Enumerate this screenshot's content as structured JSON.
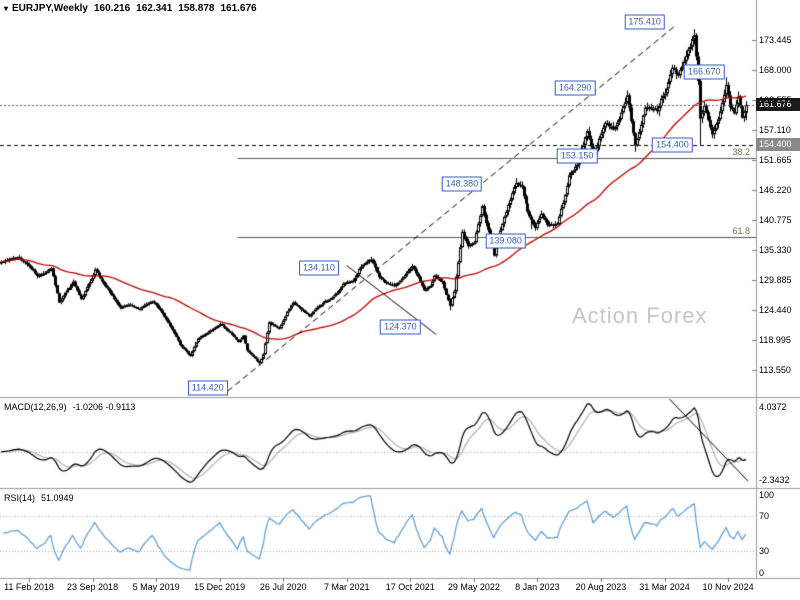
{
  "header": {
    "symbol": "EURJPY,Weekly",
    "open": "160.216",
    "high": "162.341",
    "low": "158.878",
    "close": "161.676"
  },
  "watermark": "Action Forex",
  "colors": {
    "candle_border": "#000000",
    "up_fill": "#ffffff",
    "down_fill": "#000000",
    "ma": "#c00000",
    "annotation": "#3a5bbf",
    "trend": "#000000",
    "current_chip_bg": "#1a1a1a",
    "level_chip_bg": "#8a8a8a",
    "macd_line": "#000000",
    "macd_signal": "#b0b0b0",
    "rsi_line": "#5b9bd5",
    "separator": "#9c9c9c",
    "grid_dotted": "#a8a8a8",
    "axis_text": "#000000",
    "fib_line": "#555555",
    "watermark": "#c6c6c6",
    "current_line": "#666666"
  },
  "chart_data": [
    {
      "type": "candlestick",
      "title": "EURJPY Weekly",
      "x_ticks": {
        "labels": [
          "11 Feb 2018",
          "23 Sep 2018",
          "5 May 2019",
          "15 Dec 2019",
          "26 Jul 2020",
          "7 Mar 2021",
          "17 Oct 2021",
          "29 May 2022",
          "8 Jan 2023",
          "20 Aug 2023",
          "31 Mar 2024",
          "10 Nov 2024"
        ],
        "weeks_per_tick": 32
      },
      "y_ticks": [
        "173.445",
        "168.000",
        "162.555",
        "157.110",
        "151.665",
        "146.220",
        "140.775",
        "135.330",
        "129.885",
        "124.440",
        "118.995",
        "113.550"
      ],
      "visible_price_range": [
        108.8,
        180.7
      ],
      "current": {
        "open": 160.216,
        "high": 162.341,
        "low": 158.878,
        "close": 161.676
      },
      "current_price_label": "161.676",
      "level_line": {
        "price": 154.4,
        "label": "154.400"
      },
      "weeks_start": -14,
      "weeks_end": 361,
      "close_anchors": [
        [
          -14,
          133.2
        ],
        [
          -6,
          134.0
        ],
        [
          0,
          132.4
        ],
        [
          4,
          130.6
        ],
        [
          8,
          131.2
        ],
        [
          11,
          132.0
        ],
        [
          15,
          125.8
        ],
        [
          18,
          127.6
        ],
        [
          22,
          129.6
        ],
        [
          26,
          126.4
        ],
        [
          30,
          129.3
        ],
        [
          33,
          131.8
        ],
        [
          37,
          129.6
        ],
        [
          41,
          127.5
        ],
        [
          46,
          124.9
        ],
        [
          50,
          125.4
        ],
        [
          55,
          124.6
        ],
        [
          62,
          126.0
        ],
        [
          66,
          124.4
        ],
        [
          70,
          122.1
        ],
        [
          76,
          118.1
        ],
        [
          81,
          116.1
        ],
        [
          85,
          119.3
        ],
        [
          90,
          120.4
        ],
        [
          96,
          121.9
        ],
        [
          101,
          120.3
        ],
        [
          105,
          118.6
        ],
        [
          108,
          119.8
        ],
        [
          110,
          117.1
        ],
        [
          113,
          116.0
        ],
        [
          116,
          114.8
        ],
        [
          118,
          116.4
        ],
        [
          121,
          122.2
        ],
        [
          126,
          121.1
        ],
        [
          130,
          124.2
        ],
        [
          133,
          125.8
        ],
        [
          137,
          124.5
        ],
        [
          141,
          123.3
        ],
        [
          146,
          125.2
        ],
        [
          150,
          126.2
        ],
        [
          155,
          127.5
        ],
        [
          158,
          129.2
        ],
        [
          163,
          129.7
        ],
        [
          166,
          131.9
        ],
        [
          172,
          133.6
        ],
        [
          176,
          130.4
        ],
        [
          180,
          129.3
        ],
        [
          184,
          128.8
        ],
        [
          188,
          130.2
        ],
        [
          193,
          132.4
        ],
        [
          196,
          130.5
        ],
        [
          199,
          128.0
        ],
        [
          202,
          128.8
        ],
        [
          204,
          130.7
        ],
        [
          208,
          129.5
        ],
        [
          212,
          125.2
        ],
        [
          214,
          127.8
        ],
        [
          218,
          138.6
        ],
        [
          221,
          136.0
        ],
        [
          224,
          136.7
        ],
        [
          228,
          143.3
        ],
        [
          231,
          139.0
        ],
        [
          234,
          134.3
        ],
        [
          237,
          138.9
        ],
        [
          241,
          143.5
        ],
        [
          245,
          147.5
        ],
        [
          248,
          146.8
        ],
        [
          251,
          142.3
        ],
        [
          255,
          139.3
        ],
        [
          258,
          141.9
        ],
        [
          261,
          139.9
        ],
        [
          266,
          140.0
        ],
        [
          269,
          143.9
        ],
        [
          272,
          148.9
        ],
        [
          276,
          150.8
        ],
        [
          281,
          156.9
        ],
        [
          284,
          152.3
        ],
        [
          287,
          155.6
        ],
        [
          290,
          158.4
        ],
        [
          294,
          157.2
        ],
        [
          297,
          159.1
        ],
        [
          301,
          163.4
        ],
        [
          303,
          158.7
        ],
        [
          305,
          154.3
        ],
        [
          308,
          158.1
        ],
        [
          310,
          161.2
        ],
        [
          313,
          160.9
        ],
        [
          316,
          160.5
        ],
        [
          318,
          162.8
        ],
        [
          321,
          164.7
        ],
        [
          324,
          168.4
        ],
        [
          327,
          167.0
        ],
        [
          330,
          169.6
        ],
        [
          333,
          172.2
        ],
        [
          335,
          174.3
        ],
        [
          337,
          166.0
        ],
        [
          338,
          159.2
        ],
        [
          340,
          161.5
        ],
        [
          342,
          158.9
        ],
        [
          344,
          156.3
        ],
        [
          346,
          158.2
        ],
        [
          348,
          160.5
        ],
        [
          351,
          165.3
        ],
        [
          353,
          161.2
        ],
        [
          355,
          160.1
        ],
        [
          357,
          163.2
        ],
        [
          359,
          159.3
        ],
        [
          361,
          161.676
        ]
      ],
      "extremes": [
        {
          "week": 116,
          "type": "low",
          "value": 114.42
        },
        {
          "week": 172,
          "type": "high",
          "value": 134.11
        },
        {
          "week": 212,
          "type": "low",
          "value": 124.37
        },
        {
          "week": 245,
          "type": "high",
          "value": 148.38
        },
        {
          "week": 253,
          "type": "low",
          "value": 139.08
        },
        {
          "week": 301,
          "type": "high",
          "value": 164.29
        },
        {
          "week": 305,
          "type": "low",
          "value": 153.15
        },
        {
          "week": 335,
          "type": "high",
          "value": 175.41
        },
        {
          "week": 338,
          "type": "low",
          "value": 154.42
        },
        {
          "week": 351,
          "type": "high",
          "value": 166.67
        }
      ],
      "pivot_labels": [
        {
          "text": "175.410",
          "week": 310,
          "price": 176.7
        },
        {
          "text": "166.670",
          "week": 340,
          "price": 167.7
        },
        {
          "text": "164.290",
          "week": 275,
          "price": 164.7
        },
        {
          "text": "154.400",
          "week": 324,
          "price": 154.3
        },
        {
          "text": "153.150",
          "week": 276,
          "price": 152.4
        },
        {
          "text": "148.380",
          "week": 218,
          "price": 147.3
        },
        {
          "text": "139.080",
          "week": 240,
          "price": 136.9
        },
        {
          "text": "134.110",
          "week": 146,
          "price": 132.1
        },
        {
          "text": "124.370",
          "week": 187,
          "price": 121.3
        },
        {
          "text": "114.420",
          "week": 90,
          "price": 110.3
        }
      ],
      "fib": {
        "start_week": 105,
        "levels": [
          {
            "label": "38.2",
            "price": 152.11
          },
          {
            "label": "61.8",
            "price": 137.71
          }
        ]
      },
      "trendlines": [
        {
          "style": "dashed",
          "from": [
            100,
            109.7
          ],
          "to": [
            326,
            176.2
          ]
        },
        {
          "style": "solid",
          "from": [
            160,
            132.5
          ],
          "to": [
            205,
            120.0
          ]
        }
      ],
      "ma_period": 55
    },
    {
      "type": "line",
      "name": "MACD(12,26,9)",
      "values_label": "-1.0206 -0.9113",
      "fast": 12,
      "slow": 26,
      "signal": 9,
      "axis_ticks": [
        "4.0372",
        "-2.3432"
      ],
      "trendline": {
        "from": [
          320,
          4.5
        ],
        "to": [
          362,
          -2.3
        ]
      }
    },
    {
      "type": "line",
      "name": "RSI(14)",
      "values_label": "51.0949",
      "period": 14,
      "range": [
        0,
        100
      ],
      "levels": [
        70,
        30
      ],
      "axis_ticks": [
        "100",
        "70",
        "30",
        "0"
      ]
    }
  ]
}
